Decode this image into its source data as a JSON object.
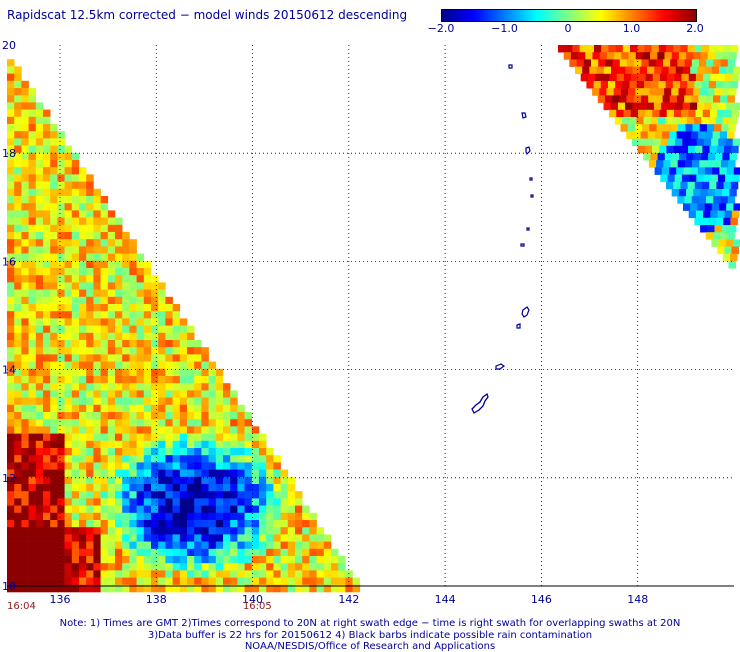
{
  "title": "Rapidscat 12.5km corrected − model winds 20150612 descending",
  "colorbar": {
    "labels": [
      "−2.0",
      "−1.0",
      "0",
      "1.0",
      "2.0"
    ],
    "values": [
      -2.0,
      -1.0,
      0,
      1.0,
      2.0
    ],
    "stops": [
      "#00008b",
      "#0000ff",
      "#0080ff",
      "#00ffff",
      "#80ff80",
      "#ffff00",
      "#ff8000",
      "#ff0000",
      "#8b0000"
    ]
  },
  "map": {
    "lon_range": [
      134.9,
      150.0
    ],
    "lat_range": [
      10.0,
      20.0
    ],
    "lon_ticks": [
      136,
      138,
      140,
      142,
      144,
      146,
      148
    ],
    "lon_tick_labels": [
      "136",
      "138",
      "140",
      "142",
      "144",
      "146",
      "148"
    ],
    "lat_ticks": [
      20,
      18,
      16,
      14,
      12,
      10
    ],
    "lat_tick_labels": [
      "20",
      "18",
      "16",
      "14",
      "12",
      "10"
    ],
    "grid_lines": "dotted",
    "time_labels": [
      {
        "text": "16:04",
        "lon": 135.2
      },
      {
        "text": "16:05",
        "lon": 140.1
      }
    ]
  },
  "notes": [
    "Note: 1) Times are GMT 2)Times correspond to 20N at right swath edge − time is right swath for overlapping swaths at 20N",
    "3)Data buffer is 22 hrs for 20150612 4) Black barbs indicate possible rain contamination",
    "NOAA/NESDIS/Office of Research and Applications"
  ]
}
